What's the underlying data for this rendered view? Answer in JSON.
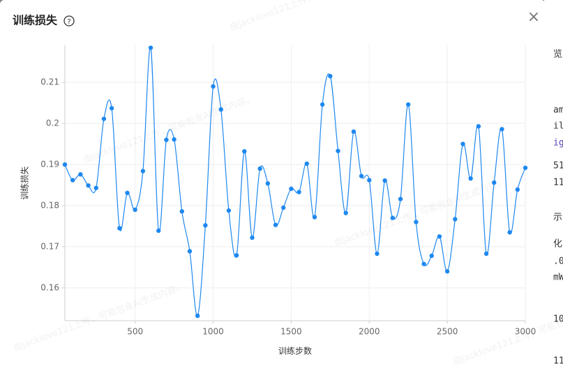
{
  "chart_data": {
    "type": "line",
    "title": "训练损失",
    "help_icon": "?",
    "close_icon": "×",
    "x_label": "训练步数",
    "y_label": "训练损失",
    "x": [
      50,
      100,
      150,
      200,
      250,
      300,
      350,
      400,
      450,
      500,
      550,
      600,
      650,
      700,
      750,
      800,
      850,
      900,
      950,
      1000,
      1050,
      1100,
      1150,
      1200,
      1250,
      1300,
      1350,
      1400,
      1450,
      1500,
      1550,
      1600,
      1650,
      1700,
      1750,
      1800,
      1850,
      1900,
      1950,
      2000,
      2050,
      2100,
      2150,
      2200,
      2250,
      2300,
      2350,
      2400,
      2450,
      2500,
      2550,
      2600,
      2650,
      2700,
      2750,
      2800,
      2850,
      2900,
      2950,
      3000
    ],
    "series": [
      {
        "name": "训练损失",
        "color": "#1e88f0",
        "values": [
          0.19,
          0.1862,
          0.1876,
          0.1849,
          0.1843,
          0.2011,
          0.2037,
          0.1745,
          0.1831,
          0.179,
          0.1884,
          0.2184,
          0.1739,
          0.196,
          0.1961,
          0.1786,
          0.1689,
          0.1532,
          0.1752,
          0.209,
          0.2034,
          0.1788,
          0.1679,
          0.1932,
          0.1722,
          0.189,
          0.1854,
          0.1753,
          0.1795,
          0.1841,
          0.1833,
          0.1902,
          0.1772,
          0.2046,
          0.2115,
          0.1933,
          0.1782,
          0.198,
          0.1872,
          0.1862,
          0.1683,
          0.1861,
          0.177,
          0.1816,
          0.2046,
          0.176,
          0.1658,
          0.1678,
          0.1725,
          0.164,
          0.1767,
          0.195,
          0.1866,
          0.1993,
          0.1683,
          0.1856,
          0.1986,
          0.1735,
          0.1839,
          0.1892
        ]
      }
    ],
    "xlim": [
      50,
      3000
    ],
    "ylim": [
      0.152,
      0.219
    ],
    "xticks": [
      500,
      1000,
      1500,
      2000,
      2500,
      3000
    ],
    "yticks": [
      0.16,
      0.17,
      0.18,
      0.19,
      0.2,
      0.21
    ],
    "grid": true,
    "watermark": "由jacklove121上传，可能包含AI生成内容。",
    "background_fragments": [
      "览",
      "am",
      "il",
      "ig",
      "51",
      "11",
      "示",
      "化",
      ".0",
      "mW",
      "10",
      "11"
    ]
  }
}
